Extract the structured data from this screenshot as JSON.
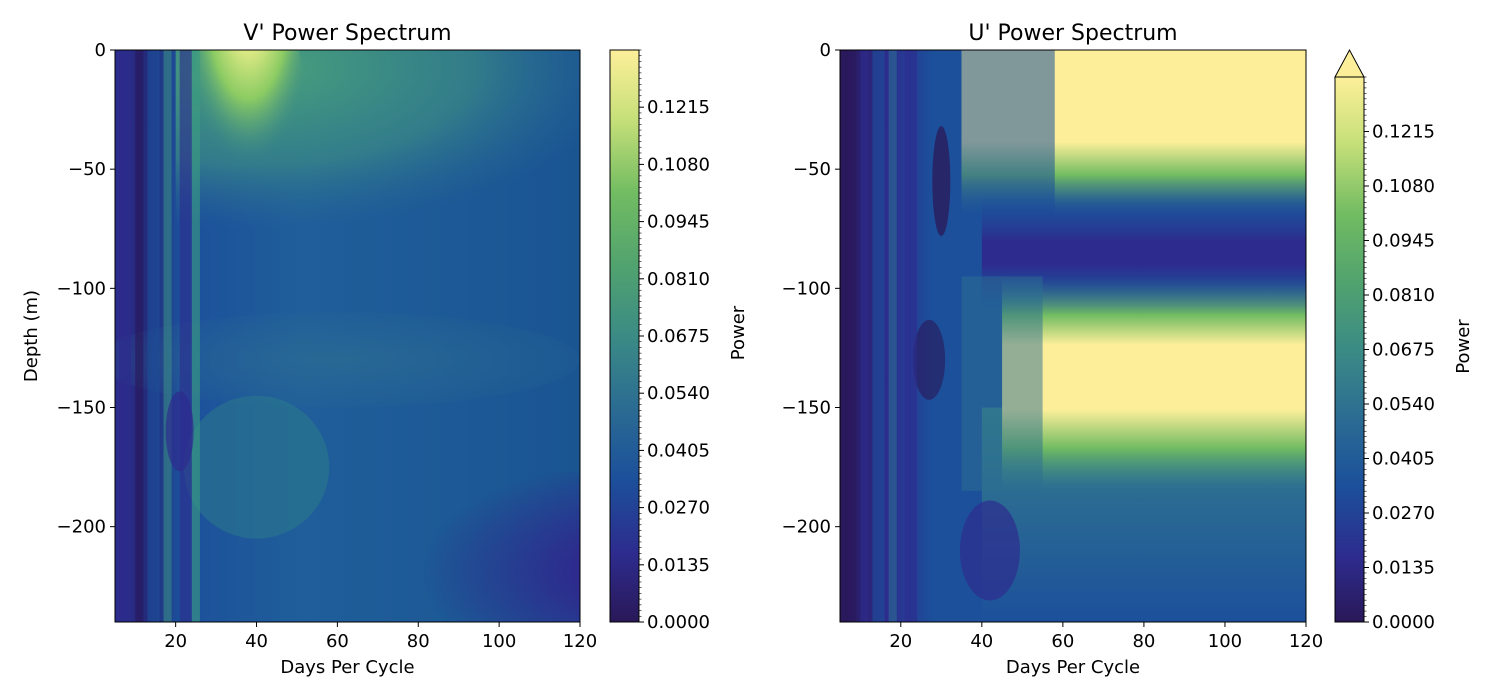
{
  "chart_data": [
    {
      "type": "heatmap",
      "title": "V' Power Spectrum",
      "xlabel": "Days Per Cycle",
      "ylabel": "Depth (m)",
      "xlim": [
        5,
        120
      ],
      "ylim": [
        -240,
        0
      ],
      "xticks": [
        20,
        40,
        60,
        80,
        100,
        120
      ],
      "yticks": [
        0,
        -50,
        -100,
        -150,
        -200
      ],
      "colorbar": {
        "label": "Power",
        "range": [
          0,
          0.135
        ],
        "ticks": [
          "0.0000",
          "0.0135",
          "0.0270",
          "0.0405",
          "0.0540",
          "0.0675",
          "0.0810",
          "0.0945",
          "0.1080",
          "0.1215"
        ],
        "extend": "none",
        "colormap": [
          "#2a1858",
          "#2d2c8e",
          "#1c509b",
          "#2c6d92",
          "#3b8b85",
          "#50a26f",
          "#72bc62",
          "#c7e079",
          "#fdef9a"
        ]
      },
      "features": [
        {
          "x": [
            28,
            50
          ],
          "y": [
            0,
            -80
          ],
          "power": 0.125,
          "note": "high"
        },
        {
          "x": [
            50,
            120
          ],
          "y": [
            0,
            -60
          ],
          "power": 0.06
        },
        {
          "x": [
            40,
            120
          ],
          "y": [
            -100,
            -140
          ],
          "power": 0.04
        },
        {
          "x": [
            80,
            120
          ],
          "y": [
            -190,
            -230
          ],
          "power": 0.005,
          "note": "low"
        },
        {
          "x": [
            5,
            15
          ],
          "y": [
            0,
            -240
          ],
          "power": 0.01,
          "note": "low"
        }
      ]
    },
    {
      "type": "heatmap",
      "title": "U' Power Spectrum",
      "xlabel": "Days Per Cycle",
      "ylabel": "",
      "xlim": [
        5,
        120
      ],
      "ylim": [
        -240,
        0
      ],
      "xticks": [
        20,
        40,
        60,
        80,
        100,
        120
      ],
      "yticks": [
        0,
        -50,
        -100,
        -150,
        -200
      ],
      "colorbar": {
        "label": "Power",
        "range": [
          0,
          0.135
        ],
        "ticks": [
          "0.0000",
          "0.0135",
          "0.0270",
          "0.0405",
          "0.0540",
          "0.0675",
          "0.0810",
          "0.0945",
          "0.1080",
          "0.1215"
        ],
        "extend": "max",
        "colormap": [
          "#2a1858",
          "#2d2c8e",
          "#1c509b",
          "#2c6d92",
          "#3b8b85",
          "#50a26f",
          "#72bc62",
          "#c7e079",
          "#fdef9a"
        ]
      },
      "features": [
        {
          "x": [
            58,
            120
          ],
          "y": [
            0,
            -40
          ],
          "power": 0.14,
          "note": "saturated"
        },
        {
          "x": [
            58,
            120
          ],
          "y": [
            -115,
            -155
          ],
          "power": 0.14,
          "note": "saturated"
        },
        {
          "x": [
            60,
            120
          ],
          "y": [
            -80,
            -95
          ],
          "power": 0.015,
          "note": "low band"
        },
        {
          "x": [
            25,
            35
          ],
          "y": [
            -30,
            -80
          ],
          "power": 0.01
        },
        {
          "x": [
            5,
            15
          ],
          "y": [
            0,
            -240
          ],
          "power": 0.005,
          "note": "low"
        }
      ]
    }
  ]
}
